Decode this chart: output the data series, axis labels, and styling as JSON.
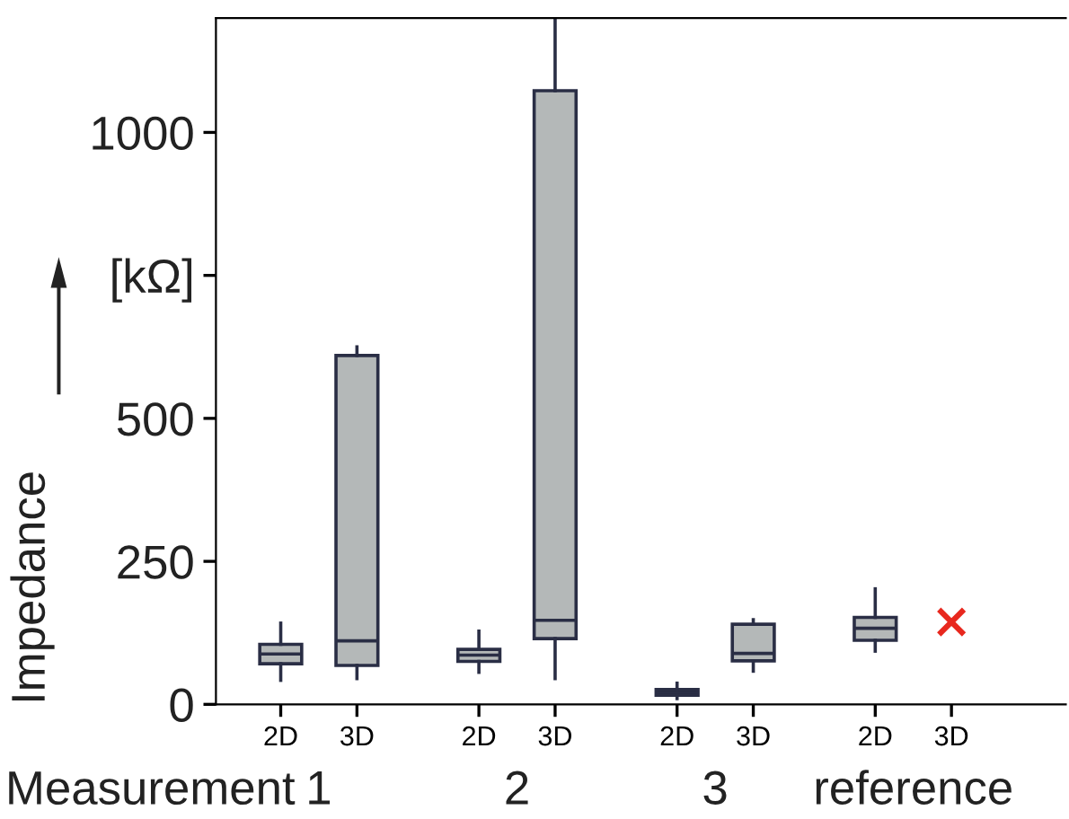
{
  "chart_data": {
    "type": "box",
    "categories": [
      "2D",
      "3D",
      "2D",
      "3D",
      "2D",
      "3D",
      "2D",
      "3D"
    ],
    "ylabel": "Impedance",
    "xlabel": "Measurement",
    "annotations": [
      "1",
      "2",
      "3",
      "reference"
    ],
    "ylim": [
      0,
      1200
    ],
    "yticks": [
      0,
      250,
      500,
      {
        "value": 750,
        "label": "[kΩ]"
      },
      1000
    ],
    "grid": false,
    "legend": false,
    "series": [
      {
        "colors": [
          "#b4b8b8",
          "#b4b8b8",
          "#b4b8b8",
          "#b4b8b8",
          "#1a1a2a",
          "#b4b8b8",
          "#b4b8b8",
          "#b4b8b8"
        ],
        "boxes": [
          {
            "low": 42,
            "q1": 71,
            "median": 88,
            "q3": 105,
            "high": 142
          },
          {
            "low": 45,
            "q1": 68,
            "median": 111,
            "q3": 610,
            "high": 625
          },
          {
            "low": 56,
            "q1": 75,
            "median": 86,
            "q3": 96,
            "high": 128
          },
          {
            "low": 45,
            "q1": 115,
            "median": 147,
            "q3": 1073,
            "high": 1200
          },
          {
            "low": 10,
            "q1": 16,
            "median": 21,
            "q3": 26,
            "high": 37
          },
          {
            "low": 58,
            "q1": 76,
            "median": 89,
            "q3": 140,
            "high": 148
          },
          {
            "low": 93,
            "q1": 112,
            "median": 133,
            "q3": 152,
            "high": 202
          },
          null
        ]
      },
      {
        "type": "scatter",
        "color": "#e8281e",
        "marker": "cross",
        "values": [
          null,
          null,
          null,
          null,
          null,
          null,
          null,
          144
        ]
      }
    ]
  }
}
